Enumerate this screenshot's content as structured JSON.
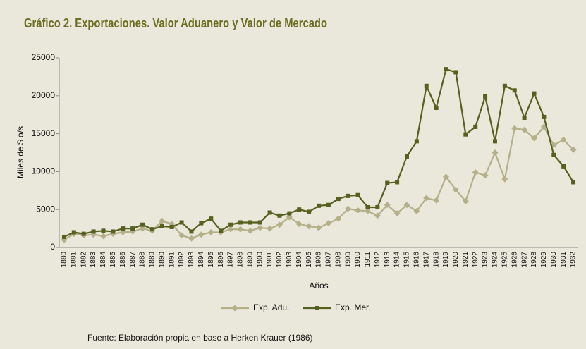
{
  "chart_data": {
    "type": "line",
    "title": "Gráfico 2. Exportaciones. Valor Aduanero y Valor de Mercado",
    "y_label": "Miles de $ o/s",
    "x_label": "Años",
    "source": "Fuente: Elaboración propia en base a Herken Krauer (1986)",
    "categories": [
      "1880",
      "1881",
      "1882",
      "1883",
      "1884",
      "1885",
      "1886",
      "1887",
      "1888",
      "1889",
      "1890",
      "1891",
      "1892",
      "1893",
      "1894",
      "1895",
      "1896",
      "1897",
      "1898",
      "1899",
      "1900",
      "1901",
      "1902",
      "1903",
      "1904",
      "1905",
      "1906",
      "1907",
      "1908",
      "1909",
      "1910",
      "1911",
      "1912",
      "1913",
      "1914",
      "1915",
      "1916",
      "1917",
      "1918",
      "1919",
      "1920",
      "1921",
      "1922",
      "1923",
      "1924",
      "1925",
      "1926",
      "1927",
      "1928",
      "1929",
      "1930",
      "1931",
      "1932"
    ],
    "series": [
      {
        "name": "Exp. Adu.",
        "color": "#b3b08a",
        "marker": "diamond",
        "values": [
          1000,
          1800,
          1600,
          1700,
          1500,
          1800,
          2000,
          2100,
          2500,
          2200,
          3500,
          3100,
          1600,
          1200,
          1700,
          2000,
          2000,
          2400,
          2400,
          2200,
          2600,
          2500,
          3000,
          4000,
          3100,
          2800,
          2600,
          3200,
          3800,
          5100,
          4900,
          4800,
          4200,
          5600,
          4500,
          5600,
          4800,
          6500,
          6200,
          9300,
          7600,
          6100,
          9900,
          9500,
          12500,
          9000,
          15700,
          15500,
          14400,
          15900,
          13500,
          14200,
          12900
        ]
      },
      {
        "name": "Exp. Mer.",
        "color": "#56601f",
        "marker": "square",
        "values": [
          1400,
          2000,
          1800,
          2100,
          2200,
          2100,
          2500,
          2500,
          3000,
          2400,
          2800,
          2700,
          3300,
          2100,
          3200,
          3800,
          2200,
          3000,
          3300,
          3300,
          3300,
          4600,
          4200,
          4500,
          5000,
          4700,
          5500,
          5600,
          6400,
          6800,
          6900,
          5300,
          5300,
          8500,
          8600,
          12000,
          14000,
          21300,
          18400,
          23500,
          23100,
          14900,
          15900,
          19900,
          14000,
          21300,
          20700,
          17100,
          20300,
          17200,
          12200,
          10700,
          8600
        ]
      }
    ],
    "ylim": [
      0,
      25000
    ],
    "yticks": [
      0,
      5000,
      10000,
      15000,
      20000,
      25000
    ],
    "grid": false,
    "legend": "bottom"
  }
}
